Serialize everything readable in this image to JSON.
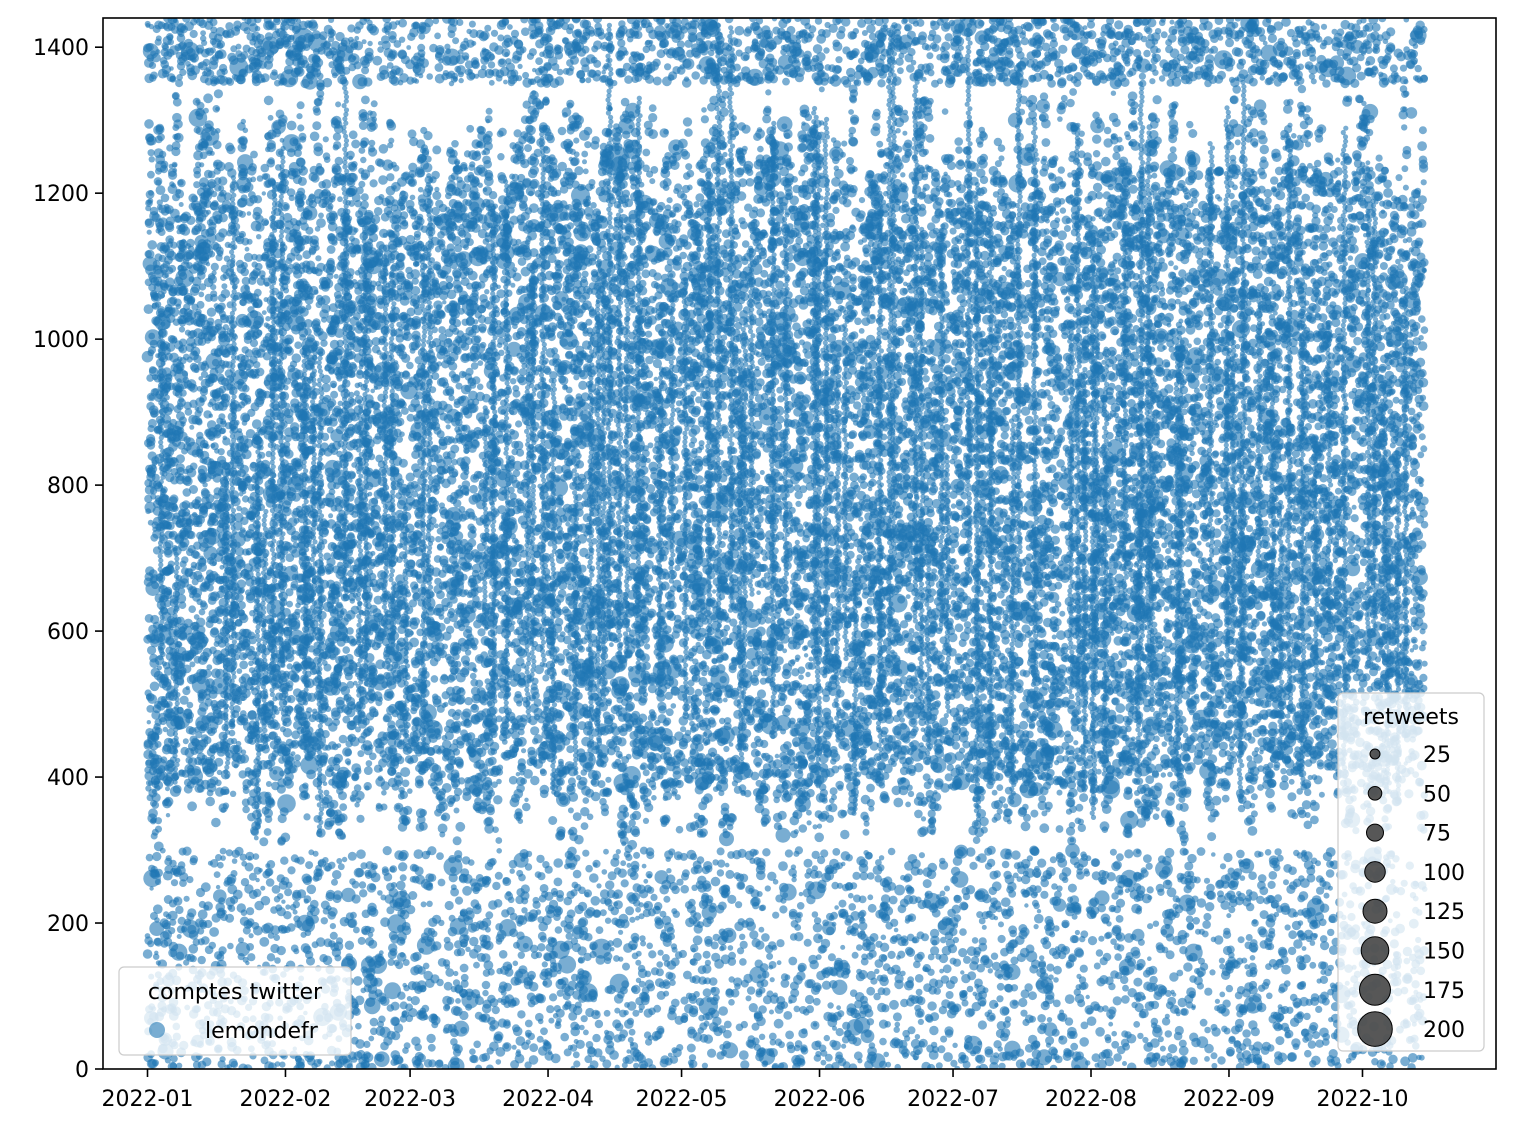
{
  "chart_data": {
    "type": "scatter",
    "title": "",
    "xlabel": "",
    "ylabel": "",
    "x_range": [
      "2021-12-22",
      "2022-10-31"
    ],
    "ylim": [
      0,
      1440
    ],
    "x_ticks": [
      "2022-01",
      "2022-02",
      "2022-03",
      "2022-04",
      "2022-05",
      "2022-06",
      "2022-07",
      "2022-08",
      "2022-09",
      "2022-10"
    ],
    "y_ticks": [
      0,
      200,
      400,
      600,
      800,
      1000,
      1200,
      1400
    ],
    "grid": false,
    "marker_alpha": 0.6,
    "series": [
      {
        "name": "lemondefr",
        "color": "#1f77b4",
        "x_start": "2022-01-01",
        "x_end": "2022-10-14",
        "y_range": [
          0,
          1440
        ],
        "dense_band": [
          300,
          1350
        ],
        "size_encodes": "retweets",
        "max_retweets": 200,
        "sample_points": [
          {
            "x": "2022-01-01",
            "y": 976,
            "retweets": 10
          },
          {
            "x": "2022-01-08",
            "y": 1276,
            "retweets": 6
          },
          {
            "x": "2022-01-25",
            "y": 1372,
            "retweets": 8
          },
          {
            "x": "2022-02-05",
            "y": 1412,
            "retweets": 50
          },
          {
            "x": "2022-02-26",
            "y": 199,
            "retweets": 40
          },
          {
            "x": "2022-03-03",
            "y": 1370,
            "retweets": 12
          },
          {
            "x": "2022-03-18",
            "y": 1390,
            "retweets": 10
          },
          {
            "x": "2022-04-13",
            "y": 165,
            "retweets": 45
          },
          {
            "x": "2022-04-16",
            "y": 1245,
            "retweets": 120
          },
          {
            "x": "2022-04-20",
            "y": 1260,
            "retweets": 40
          },
          {
            "x": "2022-05-23",
            "y": 1258,
            "retweets": 40
          },
          {
            "x": "2022-06-13",
            "y": 1365,
            "retweets": 10
          },
          {
            "x": "2022-07-15",
            "y": 1300,
            "retweets": 20
          },
          {
            "x": "2022-08-05",
            "y": 1220,
            "retweets": 30
          },
          {
            "x": "2022-09-08",
            "y": 1320,
            "retweets": 12
          },
          {
            "x": "2022-10-12",
            "y": 1310,
            "retweets": 10
          }
        ]
      }
    ],
    "legends": [
      {
        "title": "comptes twitter",
        "placement": "lower-left",
        "entries": [
          "lemondefr"
        ]
      },
      {
        "title": "retweets",
        "placement": "lower-right",
        "entries": [
          "25",
          "50",
          "75",
          "100",
          "125",
          "150",
          "175",
          "200"
        ],
        "marker_color": "#3a3a3a"
      }
    ]
  }
}
